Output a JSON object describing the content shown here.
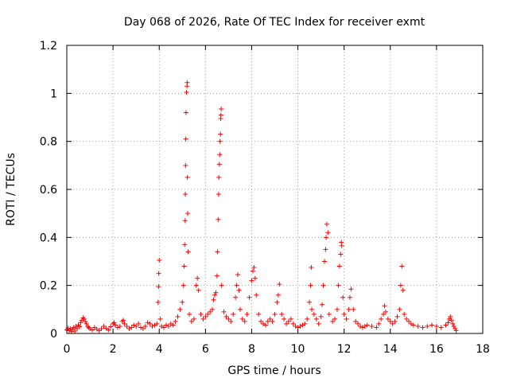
{
  "chart_data": {
    "type": "scatter",
    "title": "Day 068 of 2026, Rate Of TEC Index for receiver exmt",
    "xlabel": "GPS time / hours",
    "ylabel": "ROTI / TECUs",
    "xlim": [
      0,
      18
    ],
    "ylim": [
      0,
      1.2
    ],
    "xticks": [
      0,
      2,
      4,
      6,
      8,
      10,
      12,
      14,
      16,
      18
    ],
    "xtick_labels": [
      "0",
      "2",
      "4",
      "6",
      "8",
      "10",
      "12",
      "14",
      "16",
      "18"
    ],
    "yticks": [
      0,
      0.2,
      0.4,
      0.6,
      0.8,
      1.0,
      1.2
    ],
    "ytick_labels": [
      "0",
      "0.2",
      "0.4",
      "0.6",
      "0.8",
      "1",
      "1.2"
    ],
    "grid": true,
    "marker": "+",
    "color": "#ff0000",
    "series": [
      {
        "name": "ROTI",
        "points": [
          [
            0.0,
            0.015
          ],
          [
            0.05,
            0.022
          ],
          [
            0.1,
            0.012
          ],
          [
            0.15,
            0.02
          ],
          [
            0.2,
            0.008
          ],
          [
            0.25,
            0.018
          ],
          [
            0.3,
            0.025
          ],
          [
            0.35,
            0.01
          ],
          [
            0.4,
            0.03
          ],
          [
            0.45,
            0.02
          ],
          [
            0.5,
            0.035
          ],
          [
            0.55,
            0.028
          ],
          [
            0.6,
            0.045
          ],
          [
            0.65,
            0.055
          ],
          [
            0.7,
            0.065
          ],
          [
            0.75,
            0.06
          ],
          [
            0.8,
            0.05
          ],
          [
            0.85,
            0.04
          ],
          [
            0.9,
            0.03
          ],
          [
            0.95,
            0.025
          ],
          [
            1.0,
            0.02
          ],
          [
            1.1,
            0.015
          ],
          [
            1.2,
            0.025
          ],
          [
            1.3,
            0.018
          ],
          [
            1.4,
            0.012
          ],
          [
            1.5,
            0.02
          ],
          [
            1.6,
            0.03
          ],
          [
            1.7,
            0.022
          ],
          [
            1.8,
            0.015
          ],
          [
            1.9,
            0.028
          ],
          [
            2.0,
            0.04
          ],
          [
            2.05,
            0.045
          ],
          [
            2.1,
            0.035
          ],
          [
            2.2,
            0.025
          ],
          [
            2.3,
            0.03
          ],
          [
            2.4,
            0.05
          ],
          [
            2.45,
            0.055
          ],
          [
            2.5,
            0.04
          ],
          [
            2.6,
            0.03
          ],
          [
            2.7,
            0.02
          ],
          [
            2.8,
            0.025
          ],
          [
            2.9,
            0.035
          ],
          [
            3.0,
            0.03
          ],
          [
            3.1,
            0.04
          ],
          [
            3.2,
            0.025
          ],
          [
            3.3,
            0.02
          ],
          [
            3.4,
            0.03
          ],
          [
            3.5,
            0.045
          ],
          [
            3.6,
            0.04
          ],
          [
            3.7,
            0.03
          ],
          [
            3.8,
            0.035
          ],
          [
            3.9,
            0.04
          ],
          [
            3.95,
            0.13
          ],
          [
            3.97,
            0.195
          ],
          [
            3.98,
            0.25
          ],
          [
            4.0,
            0.305
          ],
          [
            4.05,
            0.06
          ],
          [
            4.1,
            0.03
          ],
          [
            4.2,
            0.025
          ],
          [
            4.3,
            0.035
          ],
          [
            4.4,
            0.03
          ],
          [
            4.5,
            0.04
          ],
          [
            4.6,
            0.035
          ],
          [
            4.7,
            0.05
          ],
          [
            4.8,
            0.07
          ],
          [
            4.9,
            0.1
          ],
          [
            5.0,
            0.13
          ],
          [
            5.05,
            0.2
          ],
          [
            5.08,
            0.28
          ],
          [
            5.1,
            0.37
          ],
          [
            5.12,
            0.47
          ],
          [
            5.13,
            0.58
          ],
          [
            5.14,
            0.7
          ],
          [
            5.15,
            0.81
          ],
          [
            5.16,
            0.92
          ],
          [
            5.18,
            1.005
          ],
          [
            5.2,
            1.03
          ],
          [
            5.21,
            1.045
          ],
          [
            5.22,
            0.65
          ],
          [
            5.23,
            0.5
          ],
          [
            5.25,
            0.34
          ],
          [
            5.3,
            0.08
          ],
          [
            5.4,
            0.05
          ],
          [
            5.5,
            0.06
          ],
          [
            5.6,
            0.2
          ],
          [
            5.65,
            0.23
          ],
          [
            5.7,
            0.18
          ],
          [
            5.8,
            0.08
          ],
          [
            5.9,
            0.06
          ],
          [
            6.0,
            0.07
          ],
          [
            6.1,
            0.08
          ],
          [
            6.2,
            0.09
          ],
          [
            6.3,
            0.1
          ],
          [
            6.35,
            0.14
          ],
          [
            6.4,
            0.16
          ],
          [
            6.45,
            0.17
          ],
          [
            6.5,
            0.24
          ],
          [
            6.52,
            0.34
          ],
          [
            6.55,
            0.475
          ],
          [
            6.57,
            0.58
          ],
          [
            6.58,
            0.65
          ],
          [
            6.6,
            0.705
          ],
          [
            6.62,
            0.745
          ],
          [
            6.63,
            0.8
          ],
          [
            6.65,
            0.83
          ],
          [
            6.66,
            0.895
          ],
          [
            6.67,
            0.91
          ],
          [
            6.68,
            0.935
          ],
          [
            6.7,
            0.2
          ],
          [
            6.8,
            0.09
          ],
          [
            6.9,
            0.07
          ],
          [
            7.0,
            0.06
          ],
          [
            7.1,
            0.05
          ],
          [
            7.2,
            0.08
          ],
          [
            7.3,
            0.15
          ],
          [
            7.35,
            0.2
          ],
          [
            7.4,
            0.245
          ],
          [
            7.45,
            0.18
          ],
          [
            7.5,
            0.1
          ],
          [
            7.6,
            0.06
          ],
          [
            7.7,
            0.05
          ],
          [
            7.8,
            0.08
          ],
          [
            7.9,
            0.15
          ],
          [
            8.0,
            0.22
          ],
          [
            8.05,
            0.26
          ],
          [
            8.1,
            0.275
          ],
          [
            8.15,
            0.23
          ],
          [
            8.2,
            0.16
          ],
          [
            8.3,
            0.08
          ],
          [
            8.4,
            0.05
          ],
          [
            8.5,
            0.04
          ],
          [
            8.6,
            0.035
          ],
          [
            8.7,
            0.05
          ],
          [
            8.8,
            0.06
          ],
          [
            8.9,
            0.05
          ],
          [
            9.0,
            0.08
          ],
          [
            9.1,
            0.13
          ],
          [
            9.15,
            0.16
          ],
          [
            9.2,
            0.205
          ],
          [
            9.3,
            0.08
          ],
          [
            9.4,
            0.06
          ],
          [
            9.5,
            0.04
          ],
          [
            9.6,
            0.05
          ],
          [
            9.7,
            0.06
          ],
          [
            9.8,
            0.04
          ],
          [
            9.9,
            0.03
          ],
          [
            10.0,
            0.025
          ],
          [
            10.1,
            0.03
          ],
          [
            10.2,
            0.035
          ],
          [
            10.3,
            0.04
          ],
          [
            10.4,
            0.06
          ],
          [
            10.5,
            0.13
          ],
          [
            10.55,
            0.2
          ],
          [
            10.58,
            0.275
          ],
          [
            10.6,
            0.1
          ],
          [
            10.7,
            0.08
          ],
          [
            10.8,
            0.06
          ],
          [
            10.9,
            0.04
          ],
          [
            11.0,
            0.07
          ],
          [
            11.05,
            0.12
          ],
          [
            11.1,
            0.2
          ],
          [
            11.15,
            0.3
          ],
          [
            11.2,
            0.35
          ],
          [
            11.22,
            0.4
          ],
          [
            11.25,
            0.455
          ],
          [
            11.3,
            0.42
          ],
          [
            11.35,
            0.08
          ],
          [
            11.5,
            0.05
          ],
          [
            11.6,
            0.06
          ],
          [
            11.7,
            0.1
          ],
          [
            11.75,
            0.2
          ],
          [
            11.8,
            0.28
          ],
          [
            11.85,
            0.33
          ],
          [
            11.88,
            0.38
          ],
          [
            11.9,
            0.365
          ],
          [
            11.95,
            0.15
          ],
          [
            12.0,
            0.08
          ],
          [
            12.1,
            0.06
          ],
          [
            12.2,
            0.1
          ],
          [
            12.25,
            0.15
          ],
          [
            12.3,
            0.185
          ],
          [
            12.4,
            0.1
          ],
          [
            12.5,
            0.05
          ],
          [
            12.6,
            0.04
          ],
          [
            12.7,
            0.03
          ],
          [
            12.8,
            0.025
          ],
          [
            12.9,
            0.03
          ],
          [
            13.0,
            0.035
          ],
          [
            13.2,
            0.03
          ],
          [
            13.4,
            0.025
          ],
          [
            13.5,
            0.04
          ],
          [
            13.6,
            0.06
          ],
          [
            13.7,
            0.08
          ],
          [
            13.75,
            0.115
          ],
          [
            13.8,
            0.09
          ],
          [
            13.9,
            0.06
          ],
          [
            14.0,
            0.05
          ],
          [
            14.1,
            0.04
          ],
          [
            14.2,
            0.05
          ],
          [
            14.3,
            0.07
          ],
          [
            14.4,
            0.1
          ],
          [
            14.45,
            0.2
          ],
          [
            14.5,
            0.28
          ],
          [
            14.55,
            0.18
          ],
          [
            14.6,
            0.08
          ],
          [
            14.7,
            0.06
          ],
          [
            14.8,
            0.05
          ],
          [
            14.9,
            0.04
          ],
          [
            15.0,
            0.035
          ],
          [
            15.2,
            0.03
          ],
          [
            15.4,
            0.025
          ],
          [
            15.6,
            0.03
          ],
          [
            15.8,
            0.035
          ],
          [
            16.0,
            0.03
          ],
          [
            16.2,
            0.025
          ],
          [
            16.4,
            0.035
          ],
          [
            16.5,
            0.045
          ],
          [
            16.55,
            0.06
          ],
          [
            16.6,
            0.07
          ],
          [
            16.65,
            0.055
          ],
          [
            16.7,
            0.04
          ],
          [
            16.75,
            0.03
          ],
          [
            16.8,
            0.02
          ],
          [
            16.85,
            0.012
          ]
        ]
      }
    ]
  }
}
